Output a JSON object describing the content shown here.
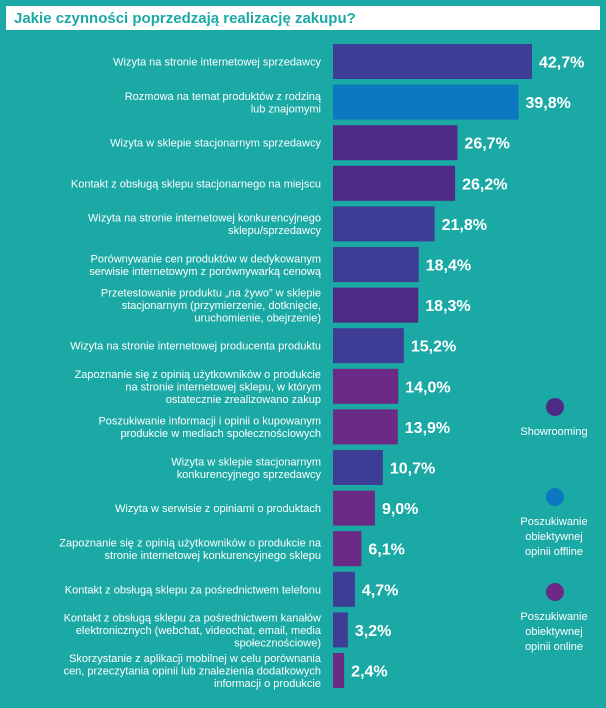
{
  "title": "Jakie czynności poprzedzają realizację zakupu?",
  "colors": {
    "background": "#1aa9a5",
    "showrooming": "#4e2a84",
    "offline": "#0d78c2",
    "online": "#6b2a86",
    "indigo": "#3d3d95"
  },
  "legend": [
    {
      "label": "Showrooming",
      "color": "#4e2a84"
    },
    {
      "label": "Poszukiwanie\nobiektywnej\nopinii offline",
      "color": "#0d78c2"
    },
    {
      "label": "Poszukiwanie\nobiektywnej\nopinii online",
      "color": "#6b2a86"
    }
  ],
  "chart_data": {
    "type": "bar",
    "orientation": "horizontal",
    "title": "Jakie czynności poprzedzają realizację zakupu?",
    "categories": [
      [
        "Wizyta na stronie internetowej sprzedawcy"
      ],
      [
        "Rozmowa na temat produktów z rodziną",
        "lub znajomymi"
      ],
      [
        "Wizyta w sklepie stacjonarnym sprzedawcy"
      ],
      [
        "Kontakt z obsługą sklepu stacjonarnego na miejscu"
      ],
      [
        "Wizyta na stronie internetowej konkurencyjnego",
        "sklepu/sprzedawcy"
      ],
      [
        "Porównywanie cen produktów w dedykowanym",
        "serwisie internetowym z porównywarką cenową"
      ],
      [
        "Przetestowanie produktu „na żywo” w sklepie",
        "stacjonarnym (przymierzenie, dotknięcie,",
        "uruchomienie, obejrzenie)"
      ],
      [
        "Wizyta na stronie internetowej producenta produktu"
      ],
      [
        "Zapoznanie się z opinią użytkowników o produkcie",
        "na stronie internetowej sklepu, w którym",
        "ostatecznie zrealizowano zakup"
      ],
      [
        "Poszukiwanie informacji i opinii o kupowanym",
        "produkcie w mediach społecznościowych"
      ],
      [
        "Wizyta w sklepie stacjonarnym",
        "konkurencyjnego sprzedawcy"
      ],
      [
        "Wizyta w serwisie z opiniami o produktach"
      ],
      [
        "Zapoznanie się z opinią użytkowników o produkcie na",
        "stronie internetowej konkurencyjnego sklepu"
      ],
      [
        "Kontakt z obsługą sklepu za pośrednictwem telefonu"
      ],
      [
        "Kontakt z obsługą sklepu za pośrednictwem kanałów",
        "elektronicznych (webchat, videochat, email, media",
        "społecznościowe)"
      ],
      [
        "Skorzystanie z aplikacji mobilnej w celu porównania",
        "cen, przeczytania opinii lub znalezienia dodatkowych",
        "informacji o produkcie"
      ]
    ],
    "values": [
      42.7,
      39.8,
      26.7,
      26.2,
      21.8,
      18.4,
      18.3,
      15.2,
      14.0,
      13.9,
      10.7,
      9.0,
      6.1,
      4.7,
      3.2,
      2.4
    ],
    "value_labels": [
      "42,7%",
      "39,8%",
      "26,7%",
      "26,2%",
      "21,8%",
      "18,4%",
      "18,3%",
      "15,2%",
      "14,0%",
      "13,9%",
      "10,7%",
      "9,0%",
      "6,1%",
      "4,7%",
      "3,2%",
      "2,4%"
    ],
    "bar_colors": [
      "#3d3d95",
      "#0d78c2",
      "#4e2a84",
      "#4e2a84",
      "#3d3d95",
      "#3d3d95",
      "#4e2a84",
      "#3d3d95",
      "#6b2a86",
      "#6b2a86",
      "#3d3d95",
      "#6b2a86",
      "#6b2a86",
      "#3d3d95",
      "#3d3d95",
      "#6b2a86"
    ],
    "xlim": [
      0,
      42.7
    ],
    "grid": false,
    "legend_position": "right"
  }
}
